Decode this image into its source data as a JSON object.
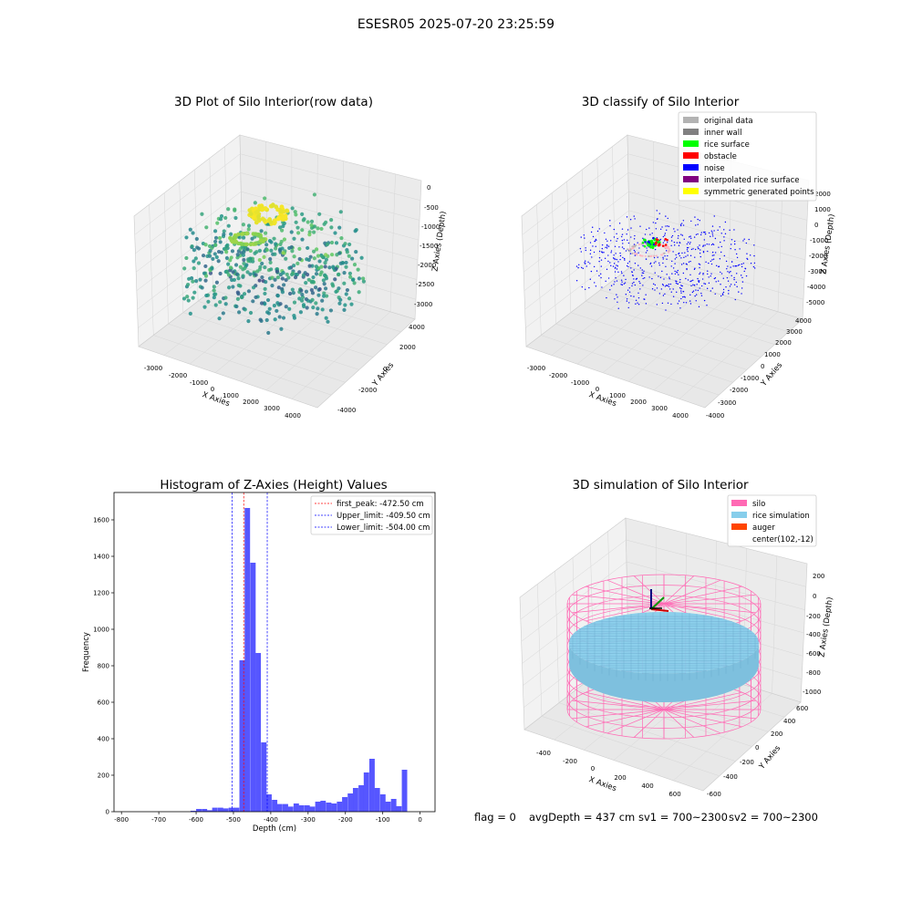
{
  "suptitle": "ESESR05 2025-07-20 23:25:59",
  "footer": {
    "flag": "flag = 0",
    "avg_depth": "avgDepth = 437 cm",
    "sv1": "sv1 = 700~2300",
    "sv2": "sv2 = 700~2300"
  },
  "chart_data": [
    {
      "type": "scatter",
      "title": "3D Plot of Silo Interior(row data)",
      "xlabel": "X Axies",
      "ylabel": "Y Axies",
      "zlabel": "Z Axies (Depth)",
      "xticks": [
        "-3000",
        "-2000",
        "-1000",
        "0",
        "1000",
        "2000",
        "3000",
        "4000"
      ],
      "yticks": [
        "-4000",
        "-2000",
        "0",
        "2000",
        "4000"
      ],
      "zticks": [
        "0",
        "-500",
        "-1000",
        "-1500",
        "-2000",
        "-2500",
        "-3000"
      ],
      "xlim": [
        -3500,
        4500
      ],
      "ylim": [
        -4500,
        4500
      ],
      "zlim": [
        -3400,
        200
      ],
      "colormap": "viridis",
      "colors": {
        "pane": "#f2f2f2",
        "grid": "#d9d9d9"
      }
    },
    {
      "type": "scatter",
      "title": "3D classify of Silo Interior",
      "xlabel": "X Axies",
      "ylabel": "Y Axies",
      "zlabel": "Z Axies (Depth)",
      "xticks": [
        "-3000",
        "-2000",
        "-1000",
        "0",
        "1000",
        "2000",
        "3000",
        "4000"
      ],
      "yticks": [
        "-4000",
        "-3000",
        "-2000",
        "-1000",
        "0",
        "1000",
        "2000",
        "3000",
        "4000"
      ],
      "zticks": [
        "2000",
        "1000",
        "0",
        "-1000",
        "-2000",
        "-3000",
        "-4000",
        "-5000"
      ],
      "legend": [
        {
          "label": "original data",
          "color": "#b3b3b3"
        },
        {
          "label": "inner wall",
          "color": "#808080"
        },
        {
          "label": "rice surface",
          "color": "#00ff00"
        },
        {
          "label": "obstacle",
          "color": "#ff0000"
        },
        {
          "label": "noise",
          "color": "#0000ff"
        },
        {
          "label": "interpolated rice surface",
          "color": "#800080"
        },
        {
          "label": "symmetric generated points",
          "color": "#ffff00"
        }
      ],
      "legend_position": "upper right"
    },
    {
      "type": "histogram",
      "title": "Histogram of Z-Axies (Height) Values",
      "xlabel": "Depth (cm)",
      "ylabel": "Frequency",
      "xlim": [
        -820,
        40
      ],
      "ylim": [
        0,
        1750
      ],
      "xticks": [
        -800,
        -700,
        -600,
        -500,
        -400,
        -300,
        -200,
        -100,
        0
      ],
      "yticks": [
        0,
        200,
        400,
        600,
        800,
        1000,
        1200,
        1400,
        1600
      ],
      "bin_width": 14.5,
      "bins": [
        [
          -615,
          5
        ],
        [
          -600,
          15
        ],
        [
          -585,
          15
        ],
        [
          -571,
          8
        ],
        [
          -557,
          22
        ],
        [
          -542,
          22
        ],
        [
          -528,
          18
        ],
        [
          -513,
          22
        ],
        [
          -499,
          22
        ],
        [
          -484,
          830
        ],
        [
          -470,
          1665
        ],
        [
          -455,
          1365
        ],
        [
          -441,
          870
        ],
        [
          -426,
          380
        ],
        [
          -412,
          95
        ],
        [
          -397,
          65
        ],
        [
          -383,
          42
        ],
        [
          -368,
          42
        ],
        [
          -354,
          28
        ],
        [
          -339,
          45
        ],
        [
          -325,
          35
        ],
        [
          -310,
          35
        ],
        [
          -296,
          28
        ],
        [
          -281,
          55
        ],
        [
          -267,
          60
        ],
        [
          -252,
          50
        ],
        [
          -238,
          45
        ],
        [
          -223,
          55
        ],
        [
          -209,
          80
        ],
        [
          -194,
          100
        ],
        [
          -180,
          130
        ],
        [
          -165,
          145
        ],
        [
          -151,
          215
        ],
        [
          -136,
          290
        ],
        [
          -122,
          130
        ],
        [
          -107,
          95
        ],
        [
          -93,
          55
        ],
        [
          -78,
          70
        ],
        [
          -64,
          30
        ],
        [
          -49,
          230
        ]
      ],
      "bar_color": "#4d4dff",
      "lines": [
        {
          "label": "first_peak: -472.50 cm",
          "value": -472.5,
          "color": "#ff0000"
        },
        {
          "label": "Upper_limit: -409.50 cm",
          "value": -409.5,
          "color": "#0000ff"
        },
        {
          "label": "Lower_limit: -504.00 cm",
          "value": -504.0,
          "color": "#0000ff"
        }
      ],
      "legend_position": "upper right"
    },
    {
      "type": "surface",
      "title": "3D simulation of Silo Interior",
      "xlabel": "X Axies",
      "ylabel": "Y Axies",
      "zlabel": "Z Axies (Depth)",
      "xticks": [
        "-400",
        "-200",
        "0",
        "200",
        "400",
        "600"
      ],
      "yticks": [
        "-600",
        "-400",
        "-200",
        "0",
        "200",
        "400",
        "600"
      ],
      "zticks": [
        "200",
        "0",
        "-200",
        "-400",
        "-600",
        "-800",
        "-1000"
      ],
      "legend": [
        {
          "label": "silo",
          "color": "#ff69b4"
        },
        {
          "label": "rice simulation",
          "color": "#87ceeb"
        },
        {
          "label": "auger",
          "color": "#ff4500"
        },
        {
          "label": "center(102,-12)",
          "color": "none"
        }
      ],
      "legend_position": "upper right"
    }
  ]
}
